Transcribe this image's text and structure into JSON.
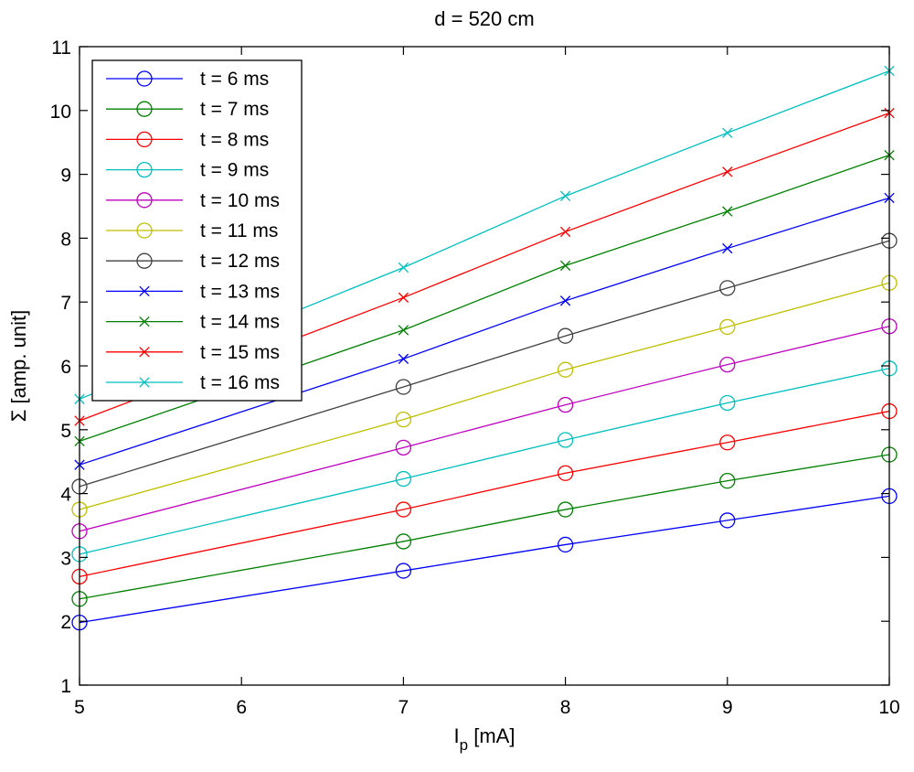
{
  "chart_data": {
    "type": "line",
    "title": "d = 520 cm",
    "xlabel_main": "I",
    "xlabel_sub": "p",
    "xlabel_unit": " [mA]",
    "ylabel": "Σ [amp. unit]",
    "xlim": [
      5,
      10
    ],
    "ylim": [
      1,
      11
    ],
    "xticks": [
      5,
      6,
      7,
      8,
      9,
      10
    ],
    "yticks": [
      1,
      2,
      3,
      4,
      5,
      6,
      7,
      8,
      9,
      10,
      11
    ],
    "grid": false,
    "legend_position": "top-left",
    "x": [
      5,
      7,
      8,
      9,
      10
    ],
    "series": [
      {
        "name": "t = 6 ms",
        "color": "#0000ff",
        "marker": "circle",
        "values": [
          1.98,
          2.79,
          3.2,
          3.58,
          3.96
        ]
      },
      {
        "name": "t = 7 ms",
        "color": "#008000",
        "marker": "circle",
        "values": [
          2.35,
          3.25,
          3.75,
          4.2,
          4.61
        ]
      },
      {
        "name": "t = 8 ms",
        "color": "#ff0000",
        "marker": "circle",
        "values": [
          2.7,
          3.75,
          4.32,
          4.8,
          5.29
        ]
      },
      {
        "name": "t = 9 ms",
        "color": "#00bfbf",
        "marker": "circle",
        "values": [
          3.05,
          4.23,
          4.84,
          5.42,
          5.96
        ]
      },
      {
        "name": "t = 10 ms",
        "color": "#bf00bf",
        "marker": "circle",
        "values": [
          3.41,
          4.72,
          5.39,
          6.02,
          6.62
        ]
      },
      {
        "name": "t = 11 ms",
        "color": "#bfbf00",
        "marker": "circle",
        "values": [
          3.75,
          5.16,
          5.94,
          6.61,
          7.3
        ]
      },
      {
        "name": "t = 12 ms",
        "color": "#404040",
        "marker": "circle",
        "values": [
          4.11,
          5.67,
          6.47,
          7.22,
          7.96
        ]
      },
      {
        "name": "t = 13 ms",
        "color": "#0000ff",
        "marker": "x",
        "values": [
          4.45,
          6.11,
          7.02,
          7.84,
          8.63
        ]
      },
      {
        "name": "t = 14 ms",
        "color": "#008000",
        "marker": "x",
        "values": [
          4.82,
          6.56,
          7.57,
          8.42,
          9.3
        ]
      },
      {
        "name": "t = 15 ms",
        "color": "#ff0000",
        "marker": "x",
        "values": [
          5.14,
          7.07,
          8.1,
          9.04,
          9.96
        ]
      },
      {
        "name": "t = 16 ms",
        "color": "#00bfbf",
        "marker": "x",
        "values": [
          5.48,
          7.54,
          8.66,
          9.65,
          10.62
        ]
      }
    ]
  }
}
